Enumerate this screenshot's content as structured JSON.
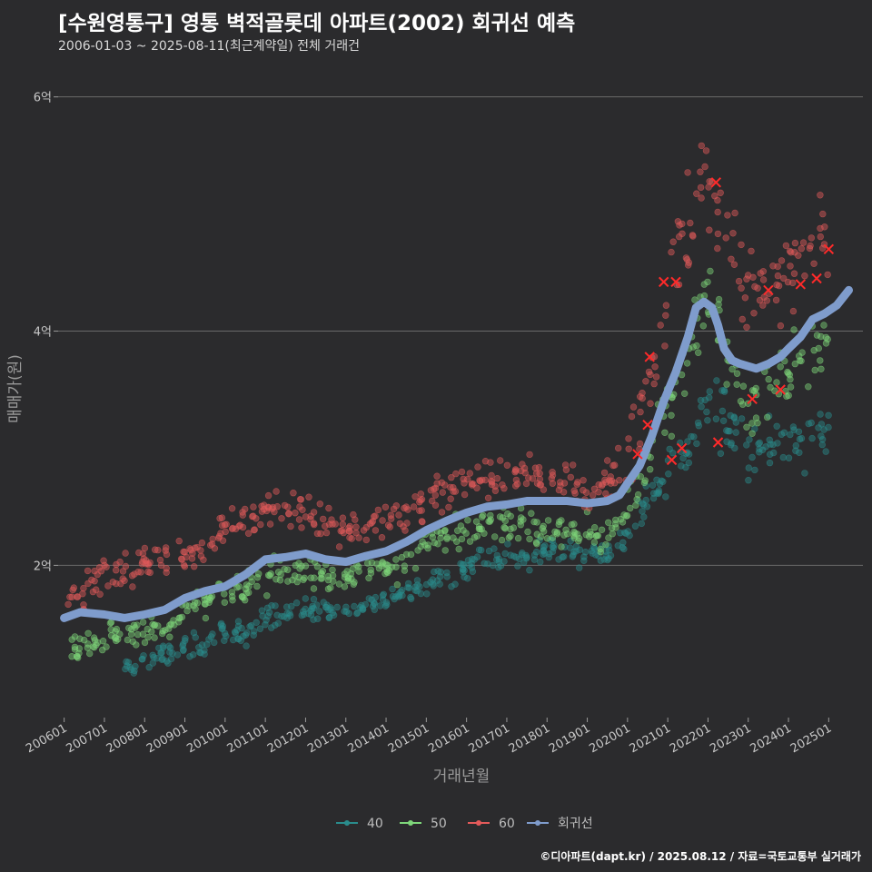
{
  "header": {
    "title": "[수원영통구] 영통 벽적골롯데 아파트(2002) 회귀선 예측",
    "subtitle": "2006-01-03 ~ 2025-08-11(최근계약일) 전체 거래건"
  },
  "footer": {
    "credit": "©디아파트(dapt.kr) / 2025.08.12 / 자료=국토교통부 실거래가"
  },
  "colors": {
    "background": "#2b2b2d",
    "grid": "#6a6a6a",
    "s40": "#2a8c8c",
    "s50": "#7ed67a",
    "s60": "#e35a5a",
    "regression": "#7f9ccc",
    "marker": "#ff2a2a"
  },
  "chart_data": {
    "type": "scatter",
    "title": "[수원영통구] 영통 벽적골롯데 아파트(2002) 회귀선 예측",
    "xlabel": "거래년월",
    "ylabel": "매매가(원)",
    "x_tick_labels": [
      "200601",
      "200701",
      "200801",
      "200901",
      "201001",
      "201101",
      "201201",
      "201301",
      "201401",
      "201501",
      "201601",
      "201701",
      "201801",
      "201901",
      "202001",
      "202101",
      "202201",
      "202301",
      "202401",
      "202501"
    ],
    "y_tick_labels": [
      "2억",
      "4억",
      "6억"
    ],
    "y_ticks": [
      2,
      4,
      6
    ],
    "ylim": [
      0.7,
      6.3
    ],
    "xlim": [
      2005.85,
      2025.85
    ],
    "y_unit": "억",
    "grid": true,
    "legend_position": "bottom",
    "series": [
      {
        "name": "40",
        "color": "#2a8c8c",
        "bands": [
          [
            2007.5,
            1.15,
            0.08
          ],
          [
            2008.0,
            1.2,
            0.08
          ],
          [
            2008.5,
            1.25,
            0.08
          ],
          [
            2009.0,
            1.3,
            0.1
          ],
          [
            2009.5,
            1.35,
            0.1
          ],
          [
            2010.0,
            1.4,
            0.1
          ],
          [
            2010.5,
            1.45,
            0.1
          ],
          [
            2011.0,
            1.55,
            0.1
          ],
          [
            2011.5,
            1.6,
            0.1
          ],
          [
            2012.0,
            1.65,
            0.08
          ],
          [
            2012.5,
            1.62,
            0.08
          ],
          [
            2013.0,
            1.62,
            0.08
          ],
          [
            2013.5,
            1.66,
            0.08
          ],
          [
            2014.0,
            1.7,
            0.08
          ],
          [
            2014.5,
            1.78,
            0.1
          ],
          [
            2015.0,
            1.85,
            0.1
          ],
          [
            2015.5,
            1.92,
            0.1
          ],
          [
            2016.0,
            1.98,
            0.1
          ],
          [
            2016.5,
            2.05,
            0.1
          ],
          [
            2017.0,
            2.08,
            0.1
          ],
          [
            2017.5,
            2.1,
            0.1
          ],
          [
            2018.0,
            2.12,
            0.1
          ],
          [
            2018.5,
            2.12,
            0.1
          ],
          [
            2019.0,
            2.08,
            0.1
          ],
          [
            2019.5,
            2.1,
            0.1
          ],
          [
            2020.0,
            2.25,
            0.12
          ],
          [
            2020.5,
            2.5,
            0.15
          ],
          [
            2021.0,
            2.8,
            0.15
          ],
          [
            2021.5,
            3.0,
            0.2
          ],
          [
            2022.0,
            3.4,
            0.25
          ],
          [
            2022.5,
            3.3,
            0.3
          ],
          [
            2023.0,
            2.9,
            0.3
          ],
          [
            2023.5,
            3.0,
            0.25
          ],
          [
            2024.0,
            3.0,
            0.25
          ],
          [
            2024.5,
            3.1,
            0.25
          ],
          [
            2025.0,
            3.15,
            0.2
          ]
        ]
      },
      {
        "name": "50",
        "color": "#7ed67a",
        "bands": [
          [
            2006.1,
            1.25,
            0.12
          ],
          [
            2006.5,
            1.3,
            0.12
          ],
          [
            2007.0,
            1.38,
            0.12
          ],
          [
            2007.5,
            1.42,
            0.12
          ],
          [
            2008.0,
            1.45,
            0.12
          ],
          [
            2008.5,
            1.5,
            0.12
          ],
          [
            2009.0,
            1.58,
            0.12
          ],
          [
            2009.5,
            1.68,
            0.12
          ],
          [
            2010.0,
            1.75,
            0.12
          ],
          [
            2010.5,
            1.82,
            0.12
          ],
          [
            2011.0,
            1.9,
            0.12
          ],
          [
            2011.5,
            1.95,
            0.12
          ],
          [
            2012.0,
            1.95,
            0.12
          ],
          [
            2012.5,
            1.9,
            0.12
          ],
          [
            2013.0,
            1.9,
            0.12
          ],
          [
            2013.5,
            1.92,
            0.12
          ],
          [
            2014.0,
            1.98,
            0.12
          ],
          [
            2014.5,
            2.05,
            0.14
          ],
          [
            2015.0,
            2.15,
            0.14
          ],
          [
            2015.5,
            2.25,
            0.14
          ],
          [
            2016.0,
            2.3,
            0.14
          ],
          [
            2016.5,
            2.35,
            0.14
          ],
          [
            2017.0,
            2.35,
            0.14
          ],
          [
            2017.5,
            2.32,
            0.14
          ],
          [
            2018.0,
            2.3,
            0.14
          ],
          [
            2018.5,
            2.28,
            0.14
          ],
          [
            2019.0,
            2.25,
            0.14
          ],
          [
            2019.5,
            2.25,
            0.14
          ],
          [
            2020.0,
            2.45,
            0.18
          ],
          [
            2020.5,
            2.85,
            0.2
          ],
          [
            2021.0,
            3.3,
            0.3
          ],
          [
            2021.5,
            3.8,
            0.3
          ],
          [
            2022.0,
            4.3,
            0.4
          ],
          [
            2022.5,
            3.7,
            0.3
          ],
          [
            2023.0,
            3.4,
            0.3
          ],
          [
            2023.5,
            3.5,
            0.3
          ],
          [
            2024.0,
            3.6,
            0.3
          ],
          [
            2024.5,
            3.8,
            0.3
          ],
          [
            2025.0,
            3.95,
            0.3
          ]
        ]
      },
      {
        "name": "60",
        "color": "#e35a5a",
        "bands": [
          [
            2006.1,
            1.7,
            0.15
          ],
          [
            2006.5,
            1.75,
            0.15
          ],
          [
            2007.0,
            1.9,
            0.18
          ],
          [
            2007.5,
            1.95,
            0.15
          ],
          [
            2008.0,
            2.0,
            0.15
          ],
          [
            2008.5,
            2.05,
            0.15
          ],
          [
            2009.0,
            2.05,
            0.15
          ],
          [
            2009.5,
            2.15,
            0.15
          ],
          [
            2010.0,
            2.3,
            0.15
          ],
          [
            2010.5,
            2.4,
            0.15
          ],
          [
            2011.0,
            2.45,
            0.15
          ],
          [
            2011.5,
            2.5,
            0.15
          ],
          [
            2012.0,
            2.45,
            0.15
          ],
          [
            2012.5,
            2.35,
            0.15
          ],
          [
            2013.0,
            2.3,
            0.15
          ],
          [
            2013.5,
            2.35,
            0.15
          ],
          [
            2014.0,
            2.4,
            0.15
          ],
          [
            2014.5,
            2.45,
            0.15
          ],
          [
            2015.0,
            2.55,
            0.15
          ],
          [
            2015.5,
            2.65,
            0.15
          ],
          [
            2016.0,
            2.7,
            0.15
          ],
          [
            2016.5,
            2.75,
            0.15
          ],
          [
            2017.0,
            2.75,
            0.15
          ],
          [
            2017.5,
            2.75,
            0.15
          ],
          [
            2018.0,
            2.72,
            0.15
          ],
          [
            2018.5,
            2.7,
            0.15
          ],
          [
            2019.0,
            2.65,
            0.15
          ],
          [
            2019.5,
            2.7,
            0.15
          ],
          [
            2020.0,
            2.9,
            0.25
          ],
          [
            2020.5,
            3.5,
            0.35
          ],
          [
            2021.0,
            4.2,
            0.45
          ],
          [
            2021.5,
            4.8,
            0.5
          ],
          [
            2022.0,
            5.3,
            0.5
          ],
          [
            2022.5,
            4.8,
            0.4
          ],
          [
            2023.0,
            4.4,
            0.3
          ],
          [
            2023.5,
            4.3,
            0.3
          ],
          [
            2024.0,
            4.5,
            0.3
          ],
          [
            2024.5,
            4.7,
            0.3
          ],
          [
            2025.0,
            4.9,
            0.3
          ]
        ]
      },
      {
        "name": "회귀선",
        "color": "#7f9ccc",
        "points": [
          [
            2006.0,
            1.55
          ],
          [
            2006.4,
            1.6
          ],
          [
            2007.0,
            1.58
          ],
          [
            2007.5,
            1.55
          ],
          [
            2008.0,
            1.58
          ],
          [
            2008.5,
            1.62
          ],
          [
            2009.0,
            1.72
          ],
          [
            2009.5,
            1.78
          ],
          [
            2010.0,
            1.82
          ],
          [
            2010.5,
            1.92
          ],
          [
            2011.0,
            2.05
          ],
          [
            2011.5,
            2.07
          ],
          [
            2012.0,
            2.1
          ],
          [
            2012.5,
            2.05
          ],
          [
            2013.0,
            2.03
          ],
          [
            2013.5,
            2.08
          ],
          [
            2014.0,
            2.12
          ],
          [
            2014.5,
            2.2
          ],
          [
            2015.0,
            2.3
          ],
          [
            2015.5,
            2.38
          ],
          [
            2016.0,
            2.45
          ],
          [
            2016.5,
            2.5
          ],
          [
            2017.0,
            2.52
          ],
          [
            2017.5,
            2.55
          ],
          [
            2018.0,
            2.55
          ],
          [
            2018.5,
            2.55
          ],
          [
            2019.0,
            2.53
          ],
          [
            2019.5,
            2.55
          ],
          [
            2019.8,
            2.6
          ],
          [
            2020.0,
            2.7
          ],
          [
            2020.3,
            2.85
          ],
          [
            2020.6,
            3.1
          ],
          [
            2020.9,
            3.4
          ],
          [
            2021.2,
            3.65
          ],
          [
            2021.5,
            3.95
          ],
          [
            2021.7,
            4.2
          ],
          [
            2021.9,
            4.25
          ],
          [
            2022.1,
            4.2
          ],
          [
            2022.25,
            4.05
          ],
          [
            2022.4,
            3.85
          ],
          [
            2022.6,
            3.75
          ],
          [
            2022.8,
            3.72
          ],
          [
            2023.0,
            3.7
          ],
          [
            2023.2,
            3.68
          ],
          [
            2023.5,
            3.72
          ],
          [
            2023.8,
            3.78
          ],
          [
            2024.0,
            3.85
          ],
          [
            2024.3,
            3.95
          ],
          [
            2024.6,
            4.1
          ],
          [
            2024.9,
            4.15
          ],
          [
            2025.2,
            4.22
          ],
          [
            2025.5,
            4.35
          ]
        ]
      }
    ],
    "highlight_markers": [
      [
        2020.25,
        2.95
      ],
      [
        2020.5,
        3.2
      ],
      [
        2020.55,
        3.78
      ],
      [
        2020.9,
        4.42
      ],
      [
        2021.1,
        2.9
      ],
      [
        2021.2,
        4.42
      ],
      [
        2021.35,
        3.0
      ],
      [
        2022.2,
        5.27
      ],
      [
        2022.25,
        3.05
      ],
      [
        2023.1,
        3.42
      ],
      [
        2023.5,
        4.35
      ],
      [
        2023.8,
        3.5
      ],
      [
        2024.3,
        4.4
      ],
      [
        2024.7,
        4.45
      ],
      [
        2025.0,
        4.7
      ]
    ]
  }
}
